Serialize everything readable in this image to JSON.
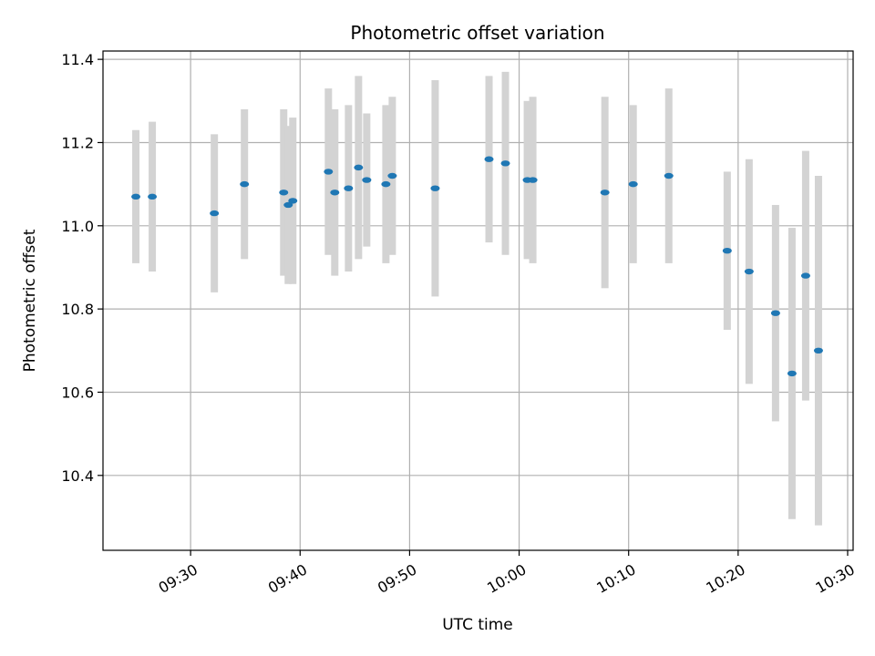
{
  "chart_data": {
    "type": "scatter",
    "title": "Photometric offset variation",
    "xlabel": "UTC time",
    "ylabel": "Photometric offset",
    "grid": true,
    "xlim": [
      "09:22:00",
      "10:30:30"
    ],
    "ylim": [
      10.22,
      11.42
    ],
    "xticks": [
      "09:30",
      "09:40",
      "09:50",
      "10:00",
      "10:10",
      "10:20",
      "10:30"
    ],
    "yticks": [
      10.4,
      10.6,
      10.8,
      11.0,
      11.2,
      11.4
    ],
    "ytick_labels": [
      "10.4",
      "10.6",
      "10.8",
      "11.0",
      "11.2",
      "11.4"
    ],
    "colors": {
      "point": "#1f77b4",
      "errorbar": "#d3d3d3",
      "grid": "#b0b0b0"
    },
    "series": [
      {
        "points": [
          {
            "x": "09:25:00",
            "y": 11.07,
            "err": 0.16
          },
          {
            "x": "09:26:30",
            "y": 11.07,
            "err": 0.18
          },
          {
            "x": "09:32:10",
            "y": 11.03,
            "err": 0.19
          },
          {
            "x": "09:34:55",
            "y": 11.1,
            "err": 0.18
          },
          {
            "x": "09:38:30",
            "y": 11.08,
            "err": 0.2
          },
          {
            "x": "09:38:55",
            "y": 11.05,
            "err": 0.19
          },
          {
            "x": "09:39:20",
            "y": 11.06,
            "err": 0.2
          },
          {
            "x": "09:42:35",
            "y": 11.13,
            "err": 0.2
          },
          {
            "x": "09:43:10",
            "y": 11.08,
            "err": 0.2
          },
          {
            "x": "09:44:25",
            "y": 11.09,
            "err": 0.2
          },
          {
            "x": "09:45:20",
            "y": 11.14,
            "err": 0.22
          },
          {
            "x": "09:46:05",
            "y": 11.11,
            "err": 0.16
          },
          {
            "x": "09:47:50",
            "y": 11.1,
            "err": 0.19
          },
          {
            "x": "09:48:25",
            "y": 11.12,
            "err": 0.19
          },
          {
            "x": "09:52:20",
            "y": 11.09,
            "err": 0.26
          },
          {
            "x": "09:57:15",
            "y": 11.16,
            "err": 0.2
          },
          {
            "x": "09:58:45",
            "y": 11.15,
            "err": 0.22
          },
          {
            "x": "10:00:45",
            "y": 11.11,
            "err": 0.19
          },
          {
            "x": "10:01:15",
            "y": 11.11,
            "err": 0.2
          },
          {
            "x": "10:07:50",
            "y": 11.08,
            "err": 0.23
          },
          {
            "x": "10:10:25",
            "y": 11.1,
            "err": 0.19
          },
          {
            "x": "10:13:40",
            "y": 11.12,
            "err": 0.21
          },
          {
            "x": "10:19:00",
            "y": 10.94,
            "err": 0.19
          },
          {
            "x": "10:21:00",
            "y": 10.89,
            "err": 0.27
          },
          {
            "x": "10:23:25",
            "y": 10.79,
            "err": 0.26
          },
          {
            "x": "10:24:55",
            "y": 10.645,
            "err": 0.35
          },
          {
            "x": "10:26:10",
            "y": 10.88,
            "err": 0.3
          },
          {
            "x": "10:27:20",
            "y": 10.7,
            "err": 0.42
          }
        ]
      }
    ]
  }
}
